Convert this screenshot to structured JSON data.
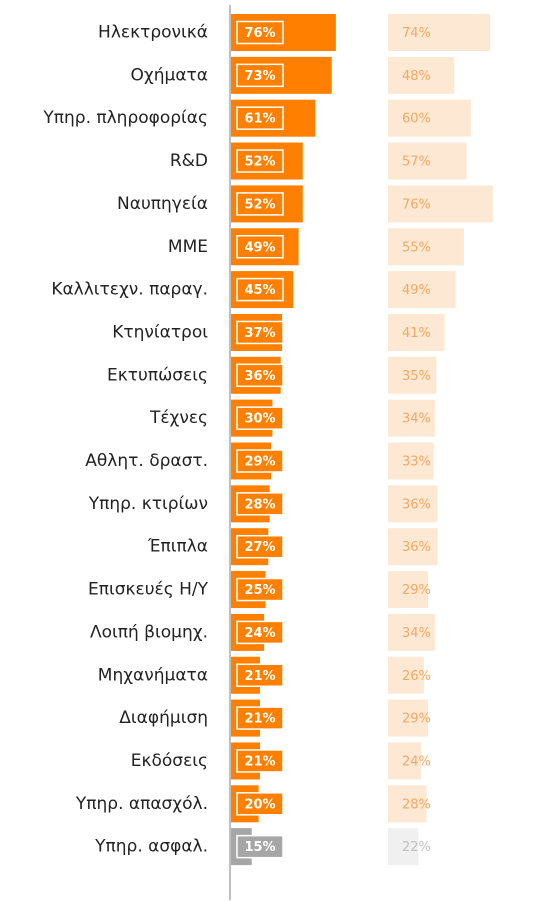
{
  "chart_data": {
    "type": "hbar-pair",
    "categories": [
      "Ηλεκτρονικά",
      "Οχήματα",
      "Υπηρ. πληροφορίας",
      "R&D",
      "Ναυπηγεία",
      "ΜΜΕ",
      "Καλλιτεχν. παραγ.",
      "Κτηνίατροι",
      "Εκτυπώσεις",
      "Τέχνες",
      "Αθλητ. δραστ.",
      "Υπηρ. κτιρίων",
      "Έπιπλα",
      "Επισκευές Η/Υ",
      "Λοιπή βιομηχ.",
      "Μηχανήματα",
      "Διαφήμιση",
      "Εκδόσεις",
      "Υπηρ. απασχόλ.",
      "Υπηρ. ασφαλ."
    ],
    "xlim": [
      0,
      100
    ],
    "series": [
      {
        "values": [
          76,
          73,
          61,
          52,
          52,
          49,
          45,
          37,
          36,
          30,
          29,
          28,
          27,
          25,
          24,
          21,
          21,
          21,
          20,
          15
        ],
        "value_labels": [
          "76%",
          "73%",
          "61%",
          "52%",
          "52%",
          "49%",
          "45%",
          "37%",
          "36%",
          "30%",
          "29%",
          "28%",
          "27%",
          "25%",
          "24%",
          "21%",
          "21%",
          "21%",
          "20%",
          "15%"
        ],
        "colors": [
          "#ff8000",
          "#ff8000",
          "#ff8000",
          "#ff8000",
          "#ff8000",
          "#ff8000",
          "#ff8000",
          "#ff8000",
          "#ff8000",
          "#ff8000",
          "#ff8000",
          "#ff8000",
          "#ff8000",
          "#ff8000",
          "#ff8000",
          "#ff8000",
          "#ff8000",
          "#ff8000",
          "#ff8000",
          "#a6a6a6"
        ],
        "label_color": "#ffffff"
      },
      {
        "values": [
          74,
          48,
          60,
          57,
          76,
          55,
          49,
          41,
          35,
          34,
          33,
          36,
          36,
          29,
          34,
          26,
          29,
          24,
          28,
          22
        ],
        "value_labels": [
          "74%",
          "48%",
          "60%",
          "57%",
          "76%",
          "55%",
          "49%",
          "41%",
          "35%",
          "34%",
          "33%",
          "36%",
          "36%",
          "29%",
          "34%",
          "26%",
          "29%",
          "24%",
          "28%",
          "22%"
        ],
        "colors": [
          "#fde8d4",
          "#fde8d4",
          "#fde8d4",
          "#fde8d4",
          "#fde8d4",
          "#fde8d4",
          "#fde8d4",
          "#fde8d4",
          "#fde8d4",
          "#fde8d4",
          "#fde8d4",
          "#fde8d4",
          "#fde8d4",
          "#fde8d4",
          "#fde8d4",
          "#fde8d4",
          "#fde8d4",
          "#fde8d4",
          "#fde8d4",
          "#f0f0f0"
        ],
        "label_colors": [
          "#f5a862",
          "#f5a862",
          "#f5a862",
          "#f5a862",
          "#f5a862",
          "#f5a862",
          "#f5a862",
          "#f5a862",
          "#f5a862",
          "#f5a862",
          "#f5a862",
          "#f5a862",
          "#f5a862",
          "#f5a862",
          "#f5a862",
          "#f5a862",
          "#f5a862",
          "#f5a862",
          "#f5a862",
          "#c0c0c0"
        ]
      }
    ]
  }
}
